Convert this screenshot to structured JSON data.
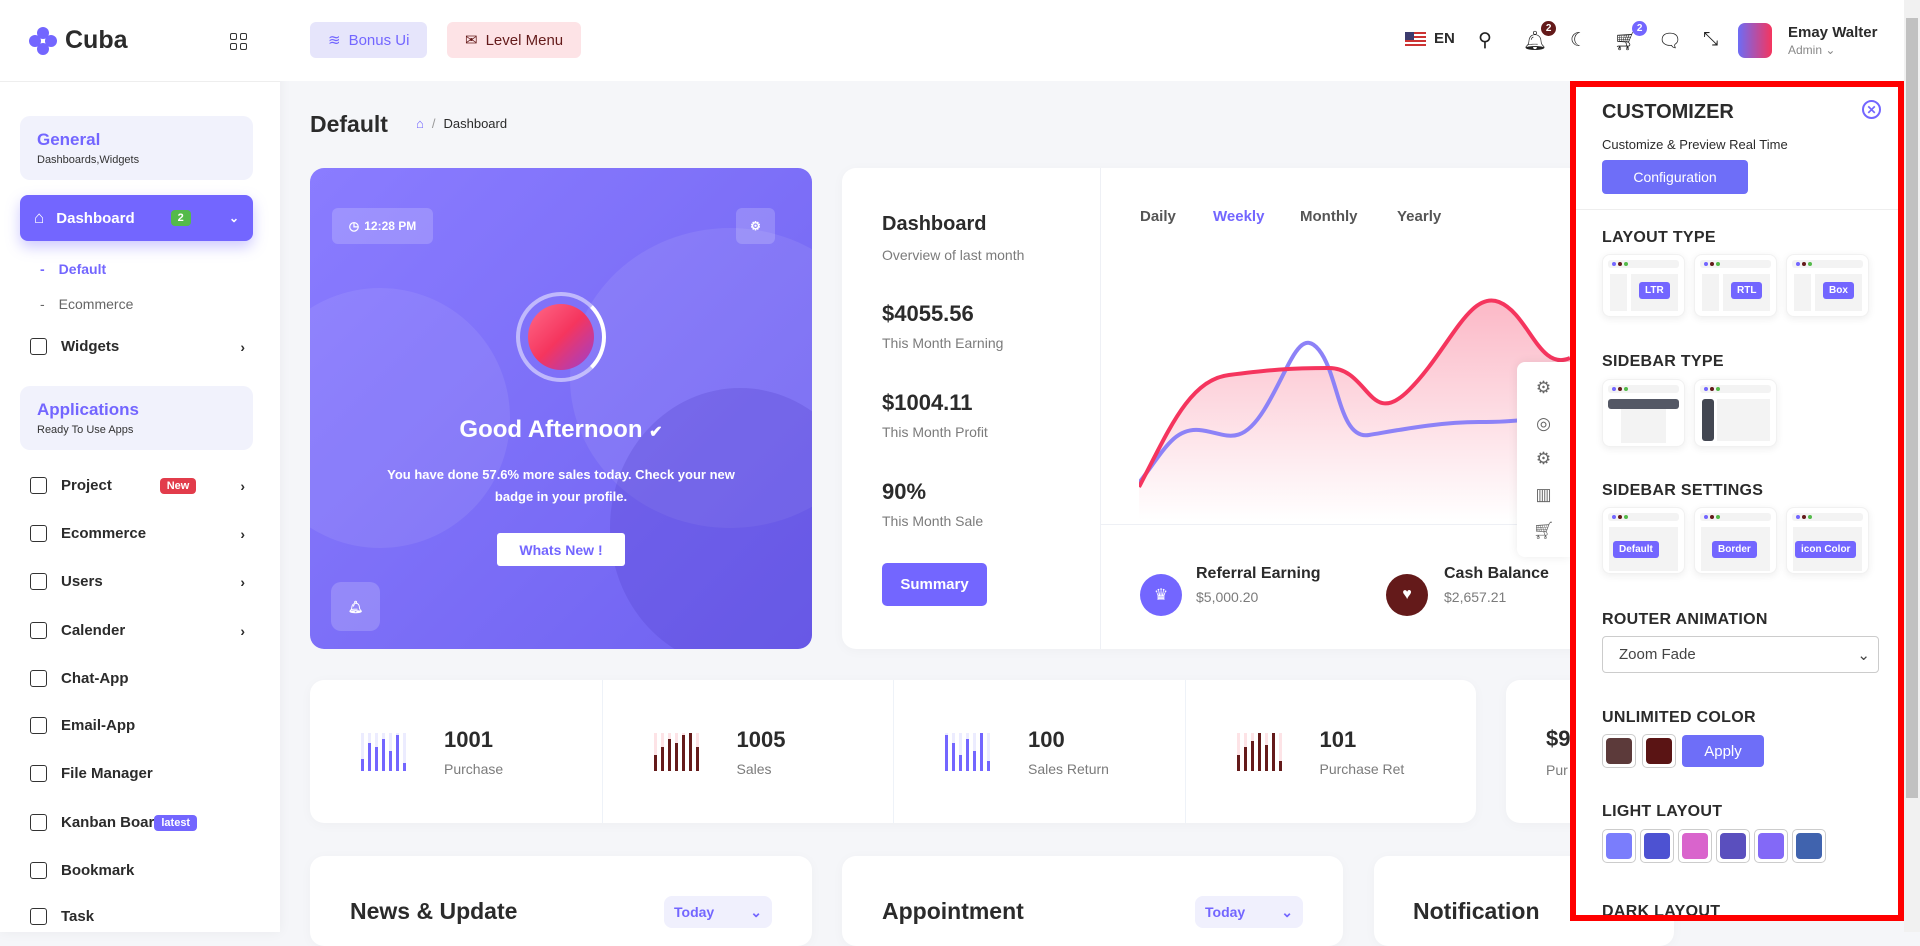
{
  "brand": {
    "name": "Cuba",
    "accent": "#7366ff",
    "secondary": "#641a1a"
  },
  "header": {
    "bonus_ui": "Bonus Ui",
    "level_menu": "Level Menu",
    "language": "EN",
    "notifications_count": "2",
    "cart_count": "2",
    "user_name": "Emay Walter",
    "user_role": "Admin"
  },
  "sidebar": {
    "general": {
      "title": "General",
      "subtitle": "Dashboards,Widgets"
    },
    "dashboard": {
      "label": "Dashboard",
      "badge": "2"
    },
    "dashboard_sub": [
      "Default",
      "Ecommerce"
    ],
    "widgets": "Widgets",
    "applications": {
      "title": "Applications",
      "subtitle": "Ready To Use Apps"
    },
    "items": [
      {
        "label": "Project",
        "badge": "New",
        "chevron": true
      },
      {
        "label": "Ecommerce",
        "chevron": true
      },
      {
        "label": "Users",
        "chevron": true
      },
      {
        "label": "Calender",
        "chevron": true
      },
      {
        "label": "Chat-App"
      },
      {
        "label": "Email-App"
      },
      {
        "label": "File Manager"
      },
      {
        "label": "Kanban Boar",
        "badge": "latest"
      },
      {
        "label": "Bookmark"
      },
      {
        "label": "Task"
      }
    ]
  },
  "page": {
    "title": "Default",
    "breadcrumb": "Dashboard"
  },
  "greeting": {
    "time": "12:28 PM",
    "title": "Good Afternoon",
    "message": "You have done 57.6% more sales today. Check your new badge in your profile.",
    "button": "Whats New !"
  },
  "overview": {
    "title": "Dashboard",
    "subtitle": "Overview of last month",
    "metrics": [
      {
        "value": "$4055.56",
        "label": "This Month Earning"
      },
      {
        "value": "$1004.11",
        "label": "This Month Profit"
      },
      {
        "value": "90%",
        "label": "This Month Sale"
      }
    ],
    "summary_button": "Summary",
    "tabs": [
      "Daily",
      "Weekly",
      "Monthly",
      "Yearly"
    ],
    "active_tab": "Weekly",
    "referral": {
      "label": "Referral Earning",
      "value": "$5,000.20"
    },
    "cash": {
      "label": "Cash Balance",
      "value": "$2,657.21"
    }
  },
  "stats": [
    {
      "value": "1001",
      "label": "Purchase",
      "color": "#7366ff"
    },
    {
      "value": "1005",
      "label": "Sales",
      "color": "#641a1a"
    },
    {
      "value": "100",
      "label": "Sales Return",
      "color": "#7366ff"
    },
    {
      "value": "101",
      "label": "Purchase Ret",
      "color": "#641a1a"
    }
  ],
  "stats_extra": {
    "value": "$9",
    "label": "Pur"
  },
  "lower": {
    "news": "News & Update",
    "appointment": "Appointment",
    "notification": "Notification",
    "today": "Today"
  },
  "customizer": {
    "title": "CUSTOMIZER",
    "subtitle": "Customize & Preview Real Time",
    "configuration": "Configuration",
    "layout_type": "LAYOUT TYPE",
    "layout_options": [
      "LTR",
      "RTL",
      "Box"
    ],
    "sidebar_type": "SIDEBAR TYPE",
    "sidebar_settings": "SIDEBAR SETTINGS",
    "sidebar_setting_options": [
      "Default",
      "Border",
      "icon Color"
    ],
    "router_animation": "ROUTER ANIMATION",
    "router_value": "Zoom Fade",
    "unlimited_color": "UNLIMITED COLOR",
    "unlimited_colors": [
      "#5c3a3a",
      "#5a1414"
    ],
    "apply": "Apply",
    "light_layout": "LIGHT LAYOUT",
    "light_colors": [
      "#7a7dfc",
      "#4d52d2",
      "#d964cc",
      "#5a4fbe",
      "#8369f7",
      "#4063ae"
    ],
    "dark_layout": "DARK LAYOUT"
  }
}
